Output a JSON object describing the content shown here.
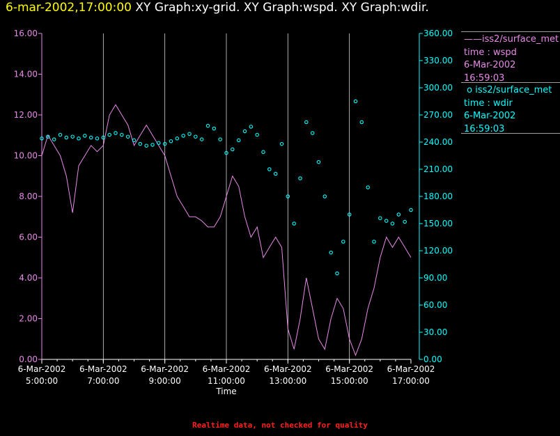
{
  "header": {
    "timestamp": "6-mar-2002,17:00:00",
    "graph_titles": "XY Graph:xy-grid.  XY Graph:wspd.  XY Graph:wdir."
  },
  "footer": {
    "note": "Realtime data, not checked for quality"
  },
  "legend": [
    {
      "marker": "——",
      "source": "iss2/surface_met",
      "label": "time : wspd",
      "date": "6-Mar-2002",
      "time": "16:59:03",
      "color": "#e88ae8"
    },
    {
      "marker": "o",
      "source": "iss2/surface_met",
      "label": "time : wdir",
      "date": "6-Mar-2002",
      "time": "16:59:03",
      "color": "#00ffff"
    }
  ],
  "colors": {
    "wspd": "#e88ae8",
    "wdir": "#00ffff",
    "grid": "#ffffff",
    "background": "#000000"
  },
  "chart_data": {
    "type": "line",
    "title": "6-mar-2002,17:00:00  XY Graph:xy-grid.  XY Graph:wspd.  XY Graph:wdir.",
    "xlabel": "Time",
    "x_units": "hours",
    "xlim": [
      5.0,
      17.0
    ],
    "x_ticks": [
      {
        "value": 5,
        "date": "6-Mar-2002",
        "time": "5:00:00"
      },
      {
        "value": 7,
        "date": "6-Mar-2002",
        "time": "7:00:00"
      },
      {
        "value": 9,
        "date": "6-Mar-2002",
        "time": "9:00:00"
      },
      {
        "value": 11,
        "date": "6-Mar-2002",
        "time": "11:00:00"
      },
      {
        "value": 13,
        "date": "6-Mar-2002",
        "time": "13:00:00"
      },
      {
        "value": 15,
        "date": "6-Mar-2002",
        "time": "15:00:00"
      },
      {
        "value": 17,
        "date": "6-Mar-2002",
        "time": "17:00:00"
      }
    ],
    "left_axis": {
      "ylim": [
        0,
        16
      ],
      "ticks": [
        "0.00",
        "2.00",
        "4.00",
        "6.00",
        "8.00",
        "10.00",
        "12.00",
        "14.00",
        "16.00"
      ]
    },
    "right_axis": {
      "ylim": [
        0,
        360
      ],
      "ticks": [
        "0.00",
        "30.00",
        "60.00",
        "90.00",
        "120.00",
        "150.00",
        "180.00",
        "210.00",
        "240.00",
        "270.00",
        "300.00",
        "330.00",
        "360.00"
      ]
    },
    "grid": "vertical lines at major time ticks",
    "series": [
      {
        "name": "wspd",
        "axis": "left",
        "style": "line",
        "x": [
          5.0,
          5.2,
          5.4,
          5.6,
          5.8,
          6.0,
          6.2,
          6.4,
          6.6,
          6.8,
          7.0,
          7.2,
          7.4,
          7.6,
          7.8,
          8.0,
          8.2,
          8.4,
          8.6,
          8.8,
          9.0,
          9.2,
          9.4,
          9.6,
          9.8,
          10.0,
          10.2,
          10.4,
          10.6,
          10.8,
          11.0,
          11.2,
          11.4,
          11.6,
          11.8,
          12.0,
          12.2,
          12.4,
          12.6,
          12.8,
          13.0,
          13.2,
          13.4,
          13.6,
          13.8,
          14.0,
          14.2,
          14.4,
          14.6,
          14.8,
          15.0,
          15.2,
          15.4,
          15.6,
          15.8,
          16.0,
          16.2,
          16.4,
          16.6,
          16.8,
          17.0
        ],
        "values": [
          10.0,
          11.0,
          10.5,
          10.0,
          9.0,
          7.2,
          9.5,
          10.0,
          10.5,
          10.2,
          10.5,
          12.0,
          12.5,
          12.0,
          11.5,
          10.5,
          11.0,
          11.5,
          11.0,
          10.5,
          10.0,
          9.0,
          8.0,
          7.5,
          7.0,
          7.0,
          6.8,
          6.5,
          6.5,
          7.0,
          8.0,
          9.0,
          8.5,
          7.0,
          6.0,
          6.5,
          5.0,
          5.5,
          6.0,
          5.5,
          1.5,
          0.5,
          2.0,
          4.0,
          2.5,
          1.0,
          0.5,
          2.0,
          3.0,
          2.5,
          1.0,
          0.2,
          1.0,
          2.5,
          3.5,
          5.0,
          6.0,
          5.5,
          6.0,
          5.5,
          5.0
        ]
      },
      {
        "name": "wdir",
        "axis": "right",
        "style": "markers",
        "x": [
          5.0,
          5.2,
          5.4,
          5.6,
          5.8,
          6.0,
          6.2,
          6.4,
          6.6,
          6.8,
          7.0,
          7.2,
          7.4,
          7.6,
          7.8,
          8.0,
          8.2,
          8.4,
          8.6,
          8.8,
          9.0,
          9.2,
          9.4,
          9.6,
          9.8,
          10.0,
          10.2,
          10.4,
          10.6,
          10.8,
          11.0,
          11.2,
          11.4,
          11.6,
          11.8,
          12.0,
          12.2,
          12.4,
          12.6,
          12.8,
          13.0,
          13.2,
          13.4,
          13.6,
          13.8,
          14.0,
          14.2,
          14.4,
          14.6,
          14.8,
          15.0,
          15.2,
          15.4,
          15.6,
          15.8,
          16.0,
          16.2,
          16.4,
          16.6,
          16.8,
          17.0
        ],
        "values": [
          244,
          246,
          243,
          248,
          245,
          246,
          244,
          247,
          245,
          244,
          245,
          248,
          250,
          248,
          246,
          242,
          238,
          236,
          237,
          239,
          238,
          241,
          244,
          247,
          249,
          246,
          243,
          258,
          255,
          243,
          228,
          232,
          242,
          252,
          257,
          248,
          229,
          210,
          205,
          238,
          180,
          150,
          200,
          262,
          250,
          218,
          180,
          118,
          95,
          130,
          160,
          285,
          262,
          190,
          130,
          156,
          153,
          150,
          160,
          152,
          165
        ]
      }
    ]
  }
}
